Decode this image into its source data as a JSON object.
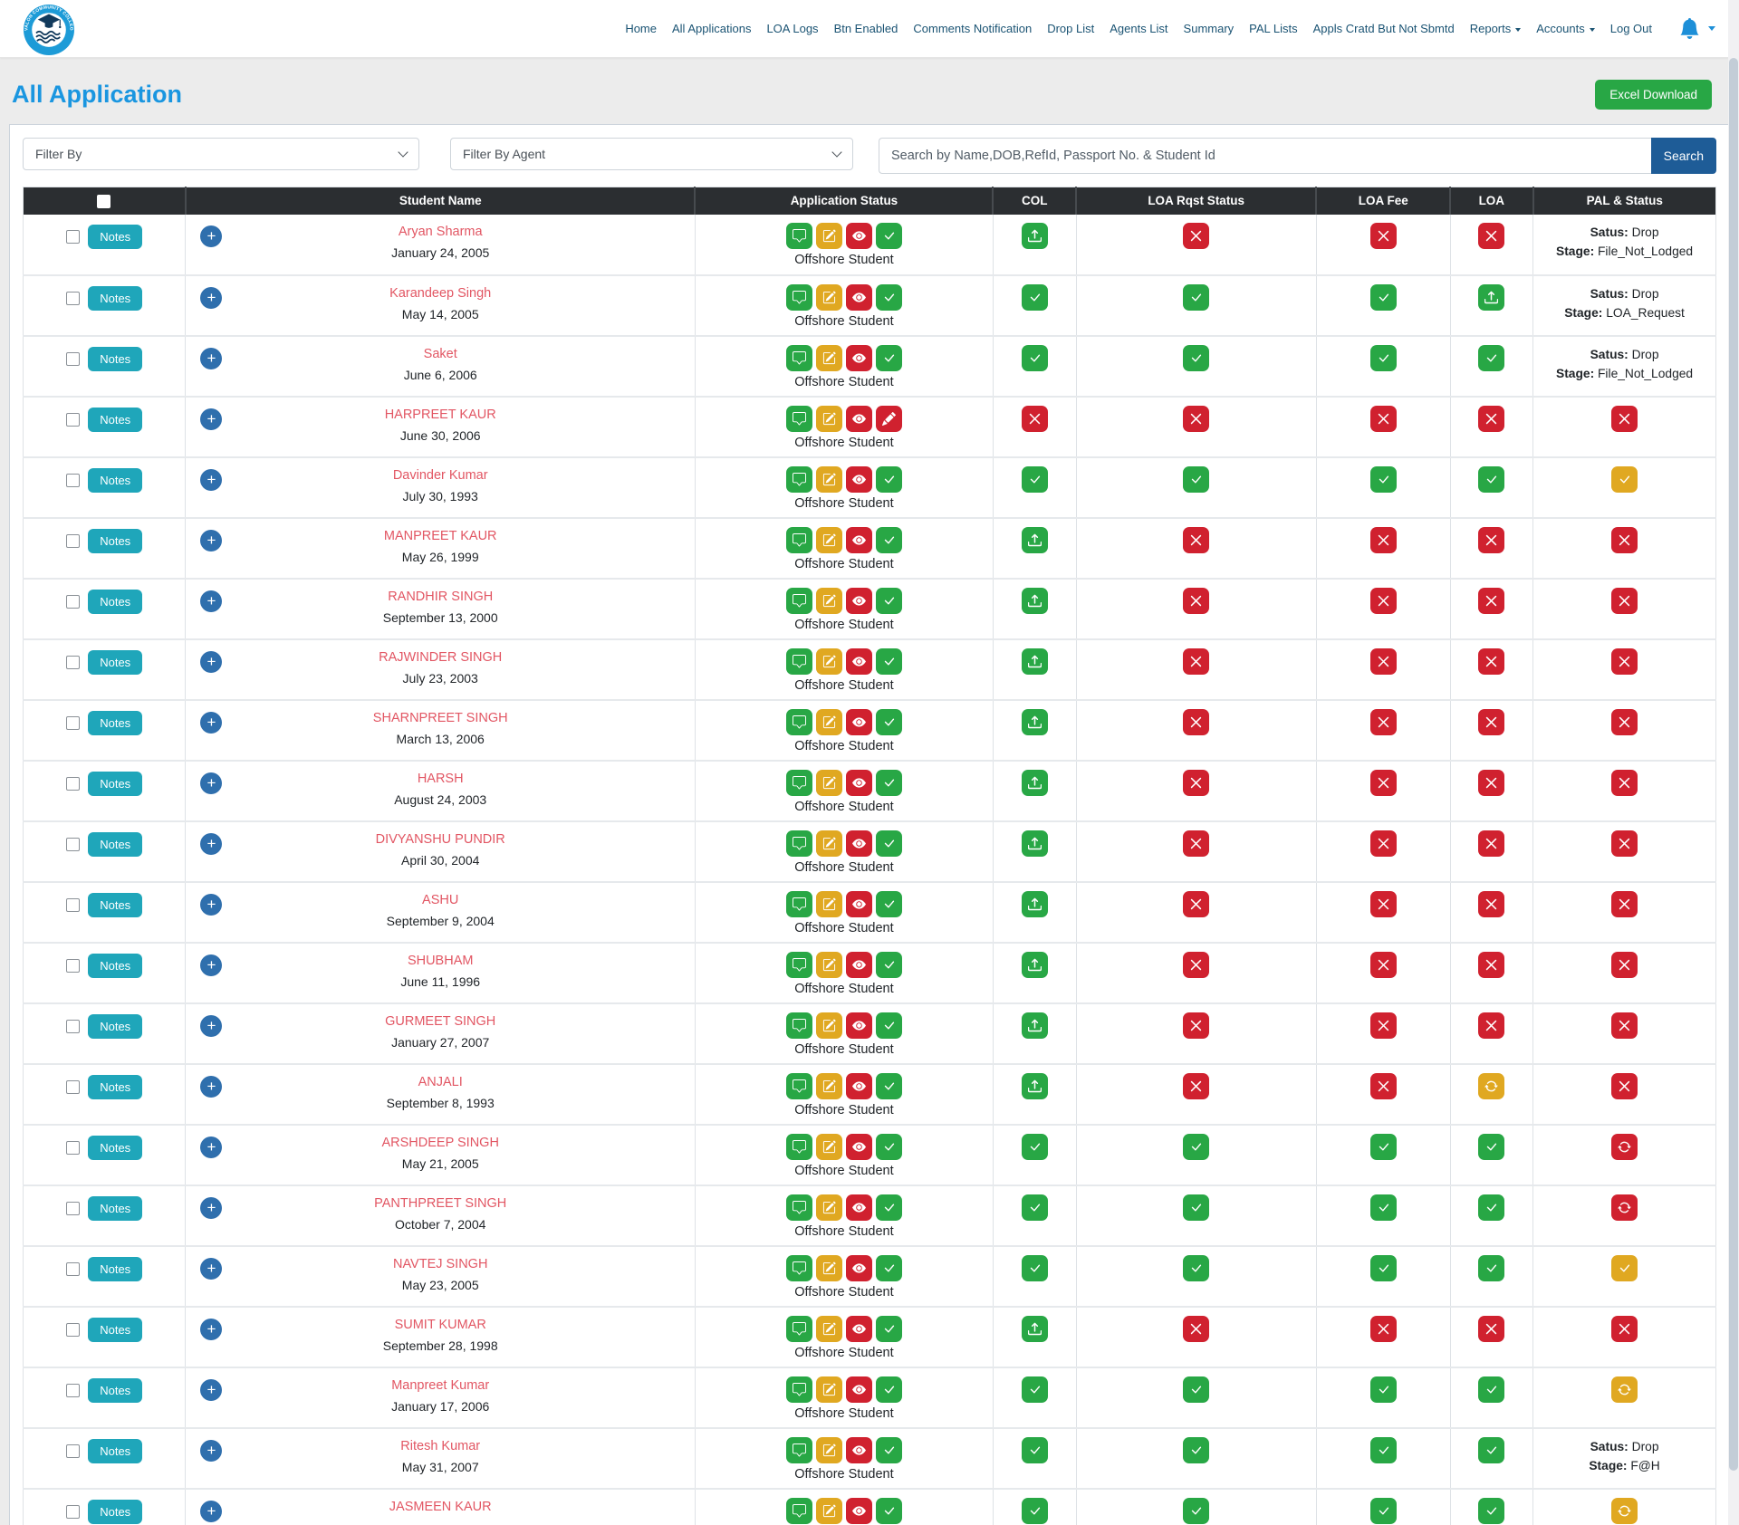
{
  "logo": {
    "arc_top": "AVALON COMMUNITY COLLEGE",
    "arc_bottom": "CANADA"
  },
  "nav": {
    "items": [
      {
        "label": "Home"
      },
      {
        "label": "All Applications"
      },
      {
        "label": "LOA Logs"
      },
      {
        "label": "Btn Enabled"
      },
      {
        "label": "Comments Notification"
      },
      {
        "label": "Drop List"
      },
      {
        "label": "Agents List"
      },
      {
        "label": "Summary"
      },
      {
        "label": "PAL Lists"
      },
      {
        "label": "Appls Cratd But Not Sbmtd"
      },
      {
        "label": "Reports",
        "dropdown": true
      },
      {
        "label": "Accounts",
        "dropdown": true
      },
      {
        "label": "Log Out"
      }
    ]
  },
  "page": {
    "title": "All Application",
    "excel_button": "Excel Download"
  },
  "filters": {
    "filter_by": "Filter By",
    "filter_by_agent": "Filter By Agent",
    "search_placeholder": "Search by Name,DOB,RefId, Passport No. & Student Id",
    "search_button": "Search"
  },
  "table": {
    "headers": [
      "",
      "Student Name",
      "Application Status",
      "COL",
      "LOA Rqst Status",
      "LOA Fee",
      "LOA",
      "PAL & Status"
    ],
    "notes_label": "Notes",
    "pal_labels": {
      "satus": "Satus:",
      "stage": "Stage:"
    },
    "rows": [
      {
        "name": "Aryan Sharma",
        "dob": "January 24, 2005",
        "app_icons": [
          "chat-green",
          "edit-yellow",
          "eye-red",
          "check-green"
        ],
        "type": "Offshore Student",
        "col": "upload-green",
        "loa_rqst": "x-red",
        "loa_fee": "x-red",
        "loa": "x-red",
        "pal": {
          "satus": "Drop",
          "stage": "File_Not_Lodged"
        }
      },
      {
        "name": "Karandeep Singh",
        "dob": "May 14, 2005",
        "app_icons": [
          "chat-green",
          "edit-yellow",
          "eye-red",
          "check-green"
        ],
        "type": "Offshore Student",
        "col": "check-green",
        "loa_rqst": "check-green",
        "loa_fee": "check-green",
        "loa": "upload-green",
        "pal": {
          "satus": "Drop",
          "stage": "LOA_Request"
        }
      },
      {
        "name": "Saket",
        "dob": "June 6, 2006",
        "app_icons": [
          "chat-green",
          "edit-yellow",
          "eye-red",
          "check-green"
        ],
        "type": "Offshore Student",
        "col": "check-green",
        "loa_rqst": "check-green",
        "loa_fee": "check-green",
        "loa": "check-green",
        "pal": {
          "satus": "Drop",
          "stage": "File_Not_Lodged"
        }
      },
      {
        "name": "HARPREET KAUR",
        "dob": "June 30, 2006",
        "app_icons": [
          "chat-green",
          "edit-yellow",
          "eye-red",
          "pencil-red"
        ],
        "type": "Offshore Student",
        "col": "x-red",
        "loa_rqst": "x-red",
        "loa_fee": "x-red",
        "loa": "x-red",
        "pal": {
          "icon": "x-red"
        }
      },
      {
        "name": "Davinder Kumar",
        "dob": "July 30, 1993",
        "app_icons": [
          "chat-green",
          "edit-yellow",
          "eye-red",
          "check-green"
        ],
        "type": "Offshore Student",
        "col": "check-green",
        "loa_rqst": "check-green",
        "loa_fee": "check-green",
        "loa": "check-green",
        "pal": {
          "icon": "check-yellow"
        }
      },
      {
        "name": "MANPREET KAUR",
        "dob": "May 26, 1999",
        "app_icons": [
          "chat-green",
          "edit-yellow",
          "eye-red",
          "check-green"
        ],
        "type": "Offshore Student",
        "col": "upload-green",
        "loa_rqst": "x-red",
        "loa_fee": "x-red",
        "loa": "x-red",
        "pal": {
          "icon": "x-red"
        }
      },
      {
        "name": "RANDHIR SINGH",
        "dob": "September 13, 2000",
        "app_icons": [
          "chat-green",
          "edit-yellow",
          "eye-red",
          "check-green"
        ],
        "type": "Offshore Student",
        "col": "upload-green",
        "loa_rqst": "x-red",
        "loa_fee": "x-red",
        "loa": "x-red",
        "pal": {
          "icon": "x-red"
        }
      },
      {
        "name": "RAJWINDER SINGH",
        "dob": "July 23, 2003",
        "app_icons": [
          "chat-green",
          "edit-yellow",
          "eye-red",
          "check-green"
        ],
        "type": "Offshore Student",
        "col": "upload-green",
        "loa_rqst": "x-red",
        "loa_fee": "x-red",
        "loa": "x-red",
        "pal": {
          "icon": "x-red"
        }
      },
      {
        "name": "SHARNPREET SINGH",
        "dob": "March 13, 2006",
        "app_icons": [
          "chat-green",
          "edit-yellow",
          "eye-red",
          "check-green"
        ],
        "type": "Offshore Student",
        "col": "upload-green",
        "loa_rqst": "x-red",
        "loa_fee": "x-red",
        "loa": "x-red",
        "pal": {
          "icon": "x-red"
        }
      },
      {
        "name": "HARSH",
        "dob": "August 24, 2003",
        "app_icons": [
          "chat-green",
          "edit-yellow",
          "eye-red",
          "check-green"
        ],
        "type": "Offshore Student",
        "col": "upload-green",
        "loa_rqst": "x-red",
        "loa_fee": "x-red",
        "loa": "x-red",
        "pal": {
          "icon": "x-red"
        }
      },
      {
        "name": "DIVYANSHU PUNDIR",
        "dob": "April 30, 2004",
        "app_icons": [
          "chat-green",
          "edit-yellow",
          "eye-red",
          "check-green"
        ],
        "type": "Offshore Student",
        "col": "upload-green",
        "loa_rqst": "x-red",
        "loa_fee": "x-red",
        "loa": "x-red",
        "pal": {
          "icon": "x-red"
        }
      },
      {
        "name": "ASHU",
        "dob": "September 9, 2004",
        "app_icons": [
          "chat-green",
          "edit-yellow",
          "eye-red",
          "check-green"
        ],
        "type": "Offshore Student",
        "col": "upload-green",
        "loa_rqst": "x-red",
        "loa_fee": "x-red",
        "loa": "x-red",
        "pal": {
          "icon": "x-red"
        }
      },
      {
        "name": "SHUBHAM",
        "dob": "June 11, 1996",
        "app_icons": [
          "chat-green",
          "edit-yellow",
          "eye-red",
          "check-green"
        ],
        "type": "Offshore Student",
        "col": "upload-green",
        "loa_rqst": "x-red",
        "loa_fee": "x-red",
        "loa": "x-red",
        "pal": {
          "icon": "x-red"
        }
      },
      {
        "name": "GURMEET SINGH",
        "dob": "January 27, 2007",
        "app_icons": [
          "chat-green",
          "edit-yellow",
          "eye-red",
          "check-green"
        ],
        "type": "Offshore Student",
        "col": "upload-green",
        "loa_rqst": "x-red",
        "loa_fee": "x-red",
        "loa": "x-red",
        "pal": {
          "icon": "x-red"
        }
      },
      {
        "name": "ANJALI",
        "dob": "September 8, 1993",
        "app_icons": [
          "chat-green",
          "edit-yellow",
          "eye-red",
          "check-green"
        ],
        "type": "Offshore Student",
        "col": "upload-green",
        "loa_rqst": "x-red",
        "loa_fee": "x-red",
        "loa": "refresh-yellow",
        "pal": {
          "icon": "x-red"
        }
      },
      {
        "name": "ARSHDEEP SINGH",
        "dob": "May 21, 2005",
        "app_icons": [
          "chat-green",
          "edit-yellow",
          "eye-red",
          "check-green"
        ],
        "type": "Offshore Student",
        "col": "check-green",
        "loa_rqst": "check-green",
        "loa_fee": "check-green",
        "loa": "check-green",
        "pal": {
          "icon": "refresh-red"
        }
      },
      {
        "name": "PANTHPREET SINGH",
        "dob": "October 7, 2004",
        "app_icons": [
          "chat-green",
          "edit-yellow",
          "eye-red",
          "check-green"
        ],
        "type": "Offshore Student",
        "col": "check-green",
        "loa_rqst": "check-green",
        "loa_fee": "check-green",
        "loa": "check-green",
        "pal": {
          "icon": "refresh-red"
        }
      },
      {
        "name": "NAVTEJ SINGH",
        "dob": "May 23, 2005",
        "app_icons": [
          "chat-green",
          "edit-yellow",
          "eye-red",
          "check-green"
        ],
        "type": "Offshore Student",
        "col": "check-green",
        "loa_rqst": "check-green",
        "loa_fee": "check-green",
        "loa": "check-green",
        "pal": {
          "icon": "check-yellow"
        }
      },
      {
        "name": "SUMIT KUMAR",
        "dob": "September 28, 1998",
        "app_icons": [
          "chat-green",
          "edit-yellow",
          "eye-red",
          "check-green"
        ],
        "type": "Offshore Student",
        "col": "upload-green",
        "loa_rqst": "x-red",
        "loa_fee": "x-red",
        "loa": "x-red",
        "pal": {
          "icon": "x-red"
        }
      },
      {
        "name": "Manpreet Kumar",
        "dob": "January 17, 2006",
        "app_icons": [
          "chat-green",
          "edit-yellow",
          "eye-red",
          "check-green"
        ],
        "type": "Offshore Student",
        "col": "check-green",
        "loa_rqst": "check-green",
        "loa_fee": "check-green",
        "loa": "check-green",
        "pal": {
          "icon": "refresh-yellow"
        }
      },
      {
        "name": "Ritesh Kumar",
        "dob": "May 31, 2007",
        "app_icons": [
          "chat-green",
          "edit-yellow",
          "eye-red",
          "check-green"
        ],
        "type": "Offshore Student",
        "col": "check-green",
        "loa_rqst": "check-green",
        "loa_fee": "check-green",
        "loa": "check-green",
        "pal": {
          "satus": "Drop",
          "stage": "F@H"
        }
      },
      {
        "name": "JASMEEN KAUR",
        "dob": "",
        "app_icons": [
          "chat-green",
          "edit-yellow",
          "eye-red",
          "check-green"
        ],
        "type": "Offshore Student",
        "col": "check-green",
        "loa_rqst": "check-green",
        "loa_fee": "check-green",
        "loa": "check-green",
        "pal": {
          "icon": "refresh-yellow"
        }
      }
    ]
  },
  "colors": {
    "accent_blue": "#1a96e0",
    "green": "#28a745",
    "red": "#d0212f",
    "yellow": "#e0a821",
    "teal": "#1fa6ba",
    "search_button_blue": "#1e5c97",
    "name_link_red": "#e25663"
  }
}
